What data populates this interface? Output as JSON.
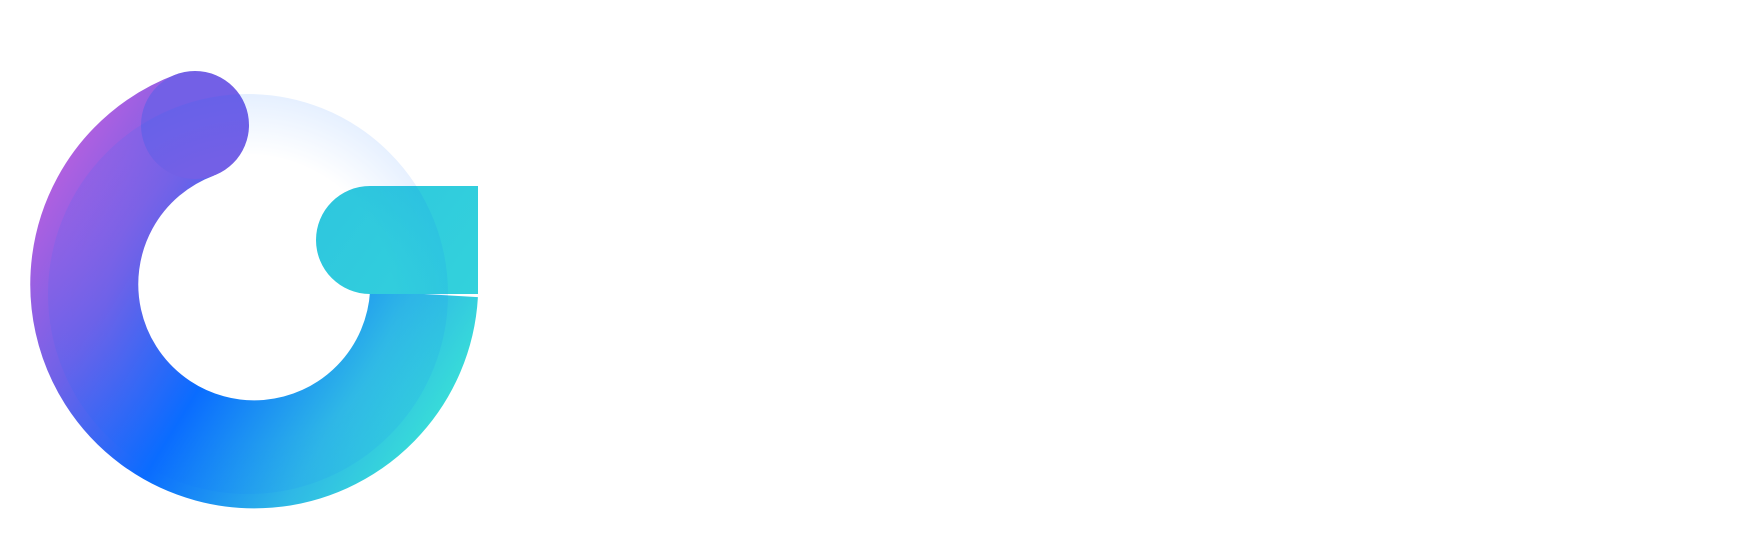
{
  "logo": {
    "icon": "circular-arrow-logo-icon",
    "colors": {
      "magenta": "#C65FDD",
      "violet": "#7260E6",
      "blue": "#0A6CFF",
      "cyan": "#2EC9DE",
      "teal": "#3BE3D6"
    }
  }
}
